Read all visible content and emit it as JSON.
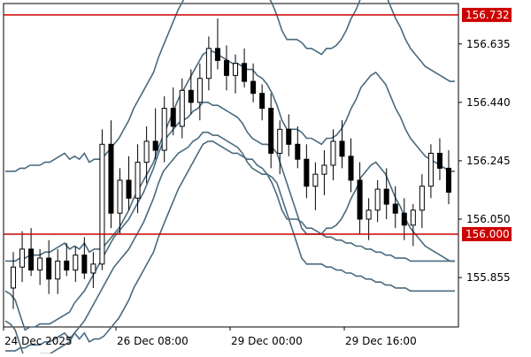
{
  "chart_data": {
    "type": "candlestick",
    "y_range": [
      155.69,
      156.77
    ],
    "y_ticks": [
      "156.635",
      "156.440",
      "156.245",
      "156.050",
      "155.855"
    ],
    "x_ticks": [
      "24 Dec 2025",
      "26 Dec 08:00",
      "29 Dec 00:00",
      "29 Dec 16:00"
    ],
    "horizontal_lines": [
      {
        "price": 156.732,
        "label": "156.732",
        "color": "#cc0000"
      },
      {
        "price": 156.0,
        "label": "156.000",
        "color": "#cc0000"
      }
    ],
    "bollinger": {
      "color": "#4a6a7e",
      "outer_upper": [
        155.61,
        155.61,
        155.61,
        155.62,
        155.62,
        155.63,
        155.63,
        155.63,
        155.64,
        155.64,
        155.65,
        155.66,
        155.67,
        155.65,
        155.67,
        155.65,
        155.67,
        155.64,
        155.65,
        155.65,
        155.66,
        155.68,
        155.7,
        155.72,
        155.75,
        155.78,
        155.82,
        155.85,
        155.88,
        155.91,
        155.94,
        155.99,
        156.03,
        156.07,
        156.11,
        156.15,
        156.18,
        156.21,
        156.24,
        156.27,
        156.3,
        156.31,
        156.31,
        156.3,
        156.29,
        156.28,
        156.27,
        156.27,
        156.26,
        156.25,
        156.25,
        156.23,
        156.22,
        156.2,
        156.17,
        156.13,
        156.08,
        156.05,
        156.05,
        156.05,
        156.04,
        156.02,
        156.02,
        156.01,
        156.0,
        156.02,
        156.02,
        156.03,
        156.05,
        156.08,
        156.12,
        156.15,
        156.19,
        156.21,
        156.23,
        156.24,
        156.22,
        156.2,
        156.16,
        156.12,
        156.09,
        156.05,
        156.02,
        156.0,
        155.98,
        155.96,
        155.95,
        155.94,
        155.93,
        155.92,
        155.91,
        155.91
      ],
      "inner_upper": [
        155.91,
        155.91,
        155.91,
        155.92,
        155.92,
        155.93,
        155.93,
        155.93,
        155.94,
        155.94,
        155.95,
        155.96,
        155.97,
        155.95,
        155.96,
        155.95,
        155.97,
        155.94,
        155.95,
        155.95,
        155.96,
        155.98,
        156.0,
        156.02,
        156.05,
        156.08,
        156.12,
        156.15,
        156.18,
        156.21,
        156.24,
        156.29,
        156.33,
        156.37,
        156.41,
        156.45,
        156.48,
        156.51,
        156.54,
        156.57,
        156.6,
        156.61,
        156.61,
        156.6,
        156.59,
        156.58,
        156.57,
        156.57,
        156.56,
        156.55,
        156.55,
        156.53,
        156.52,
        156.5,
        156.47,
        156.43,
        156.38,
        156.35,
        156.35,
        156.35,
        156.34,
        156.32,
        156.32,
        156.31,
        156.3,
        156.32,
        156.32,
        156.33,
        156.35,
        156.38,
        156.42,
        156.45,
        156.49,
        156.51,
        156.53,
        156.54,
        156.52,
        156.5,
        156.46,
        156.42,
        156.39,
        156.35,
        156.32,
        156.3,
        156.28,
        156.26,
        156.25,
        156.24,
        156.23,
        156.22,
        156.21,
        156.21
      ],
      "middle": [
        156.21,
        156.21,
        156.21,
        156.22,
        156.22,
        156.23,
        156.23,
        156.23,
        156.24,
        156.24,
        156.25,
        156.26,
        156.27,
        156.25,
        156.26,
        156.25,
        156.27,
        156.24,
        156.25,
        156.25,
        156.26,
        156.28,
        156.3,
        156.32,
        156.35,
        156.38,
        156.42,
        156.45,
        156.48,
        156.51,
        156.54,
        156.59,
        156.63,
        156.67,
        156.71,
        156.75,
        156.78,
        156.81,
        156.84,
        156.87,
        156.9,
        156.91,
        156.91,
        156.9,
        156.89,
        156.88,
        156.87,
        156.87,
        156.86,
        156.85,
        156.85,
        156.83,
        156.82,
        156.8,
        156.77,
        156.73,
        156.68,
        156.65,
        156.65,
        156.65,
        156.64,
        156.62,
        156.62,
        156.61,
        156.6,
        156.62,
        156.62,
        156.63,
        156.65,
        156.68,
        156.72,
        156.75,
        156.79,
        156.81,
        156.83,
        156.84,
        156.82,
        156.8,
        156.76,
        156.72,
        156.69,
        156.65,
        156.62,
        156.6,
        156.58,
        156.56,
        156.55,
        156.54,
        156.53,
        156.52,
        156.51,
        156.51
      ],
      "inner_lower": [
        155.81,
        155.8,
        155.78,
        155.73,
        155.68,
        155.69,
        155.69,
        155.7,
        155.7,
        155.7,
        155.71,
        155.72,
        155.73,
        155.74,
        155.77,
        155.79,
        155.81,
        155.84,
        155.87,
        155.9,
        155.93,
        155.96,
        155.99,
        156.01,
        156.03,
        156.05,
        156.08,
        156.11,
        156.14,
        156.18,
        156.22,
        156.27,
        156.31,
        156.33,
        156.35,
        156.37,
        156.38,
        156.39,
        156.41,
        156.42,
        156.44,
        156.44,
        156.43,
        156.43,
        156.42,
        156.41,
        156.4,
        156.39,
        156.37,
        156.34,
        156.32,
        156.31,
        156.3,
        156.3,
        156.29,
        156.27,
        156.22,
        156.17,
        156.12,
        156.07,
        156.02,
        156.0,
        156.0,
        156.0,
        156.0,
        155.99,
        155.99,
        155.98,
        155.98,
        155.97,
        155.97,
        155.96,
        155.96,
        155.95,
        155.95,
        155.94,
        155.94,
        155.93,
        155.93,
        155.92,
        155.92,
        155.92,
        155.91,
        155.91,
        155.91,
        155.91,
        155.91,
        155.91,
        155.91,
        155.91,
        155.91,
        155.91
      ],
      "outer_lower": [
        155.71,
        155.7,
        155.68,
        155.63,
        155.58,
        155.59,
        155.59,
        155.6,
        155.6,
        155.6,
        155.61,
        155.62,
        155.63,
        155.64,
        155.67,
        155.69,
        155.71,
        155.74,
        155.77,
        155.8,
        155.83,
        155.86,
        155.89,
        155.91,
        155.93,
        155.95,
        155.98,
        156.01,
        156.04,
        156.08,
        156.12,
        156.17,
        156.21,
        156.23,
        156.25,
        156.27,
        156.28,
        156.29,
        156.31,
        156.32,
        156.34,
        156.34,
        156.33,
        156.33,
        156.32,
        156.31,
        156.3,
        156.29,
        156.27,
        156.24,
        156.22,
        156.21,
        156.2,
        156.2,
        156.19,
        156.17,
        156.12,
        156.07,
        156.02,
        155.97,
        155.92,
        155.9,
        155.9,
        155.9,
        155.9,
        155.89,
        155.89,
        155.88,
        155.88,
        155.87,
        155.87,
        155.86,
        155.86,
        155.85,
        155.85,
        155.84,
        155.84,
        155.83,
        155.83,
        155.82,
        155.82,
        155.82,
        155.81,
        155.81,
        155.81,
        155.81,
        155.81,
        155.81,
        155.81,
        155.81,
        155.81,
        155.81
      ]
    },
    "candles": [
      [
        155.82,
        155.94,
        155.75,
        155.89
      ],
      [
        155.89,
        156.01,
        155.84,
        155.95
      ],
      [
        155.95,
        156.02,
        155.86,
        155.88
      ],
      [
        155.88,
        155.95,
        155.83,
        155.92
      ],
      [
        155.92,
        155.98,
        155.8,
        155.85
      ],
      [
        155.85,
        155.95,
        155.8,
        155.91
      ],
      [
        155.91,
        155.97,
        155.86,
        155.88
      ],
      [
        155.88,
        155.96,
        155.84,
        155.93
      ],
      [
        155.93,
        155.99,
        155.85,
        155.87
      ],
      [
        155.87,
        155.94,
        155.82,
        155.9
      ],
      [
        155.9,
        156.35,
        155.88,
        156.3
      ],
      [
        156.3,
        156.38,
        156.02,
        156.07
      ],
      [
        156.07,
        156.22,
        156.0,
        156.18
      ],
      [
        156.18,
        156.26,
        156.08,
        156.12
      ],
      [
        156.12,
        156.3,
        156.07,
        156.24
      ],
      [
        156.24,
        156.36,
        156.17,
        156.31
      ],
      [
        156.31,
        156.42,
        156.25,
        156.28
      ],
      [
        156.28,
        156.46,
        156.24,
        156.42
      ],
      [
        156.42,
        156.49,
        156.33,
        156.36
      ],
      [
        156.36,
        156.52,
        156.32,
        156.48
      ],
      [
        156.48,
        156.55,
        156.4,
        156.44
      ],
      [
        156.44,
        156.57,
        156.38,
        156.52
      ],
      [
        156.52,
        156.66,
        156.48,
        156.62
      ],
      [
        156.62,
        156.72,
        156.55,
        156.58
      ],
      [
        156.58,
        156.63,
        156.48,
        156.53
      ],
      [
        156.53,
        156.6,
        156.47,
        156.57
      ],
      [
        156.57,
        156.62,
        156.49,
        156.51
      ],
      [
        156.51,
        156.57,
        156.44,
        156.47
      ],
      [
        156.47,
        156.5,
        156.38,
        156.42
      ],
      [
        156.42,
        156.47,
        156.22,
        156.27
      ],
      [
        156.27,
        156.38,
        156.2,
        156.35
      ],
      [
        156.35,
        156.4,
        156.26,
        156.3
      ],
      [
        156.3,
        156.36,
        156.22,
        156.25
      ],
      [
        156.25,
        156.3,
        156.12,
        156.16
      ],
      [
        156.16,
        156.24,
        156.08,
        156.2
      ],
      [
        156.2,
        156.28,
        156.13,
        156.23
      ],
      [
        156.23,
        156.35,
        156.18,
        156.31
      ],
      [
        156.31,
        156.38,
        156.22,
        156.26
      ],
      [
        156.26,
        156.32,
        156.14,
        156.18
      ],
      [
        156.18,
        156.24,
        156.0,
        156.05
      ],
      [
        156.05,
        156.12,
        155.98,
        156.08
      ],
      [
        156.08,
        156.18,
        156.04,
        156.15
      ],
      [
        156.15,
        156.22,
        156.05,
        156.1
      ],
      [
        156.1,
        156.16,
        156.02,
        156.07
      ],
      [
        156.07,
        156.12,
        155.98,
        156.03
      ],
      [
        156.03,
        156.1,
        155.96,
        156.08
      ],
      [
        156.08,
        156.2,
        156.02,
        156.16
      ],
      [
        156.16,
        156.3,
        156.12,
        156.27
      ],
      [
        156.27,
        156.32,
        156.18,
        156.22
      ],
      [
        156.22,
        156.28,
        156.1,
        156.14
      ]
    ]
  }
}
